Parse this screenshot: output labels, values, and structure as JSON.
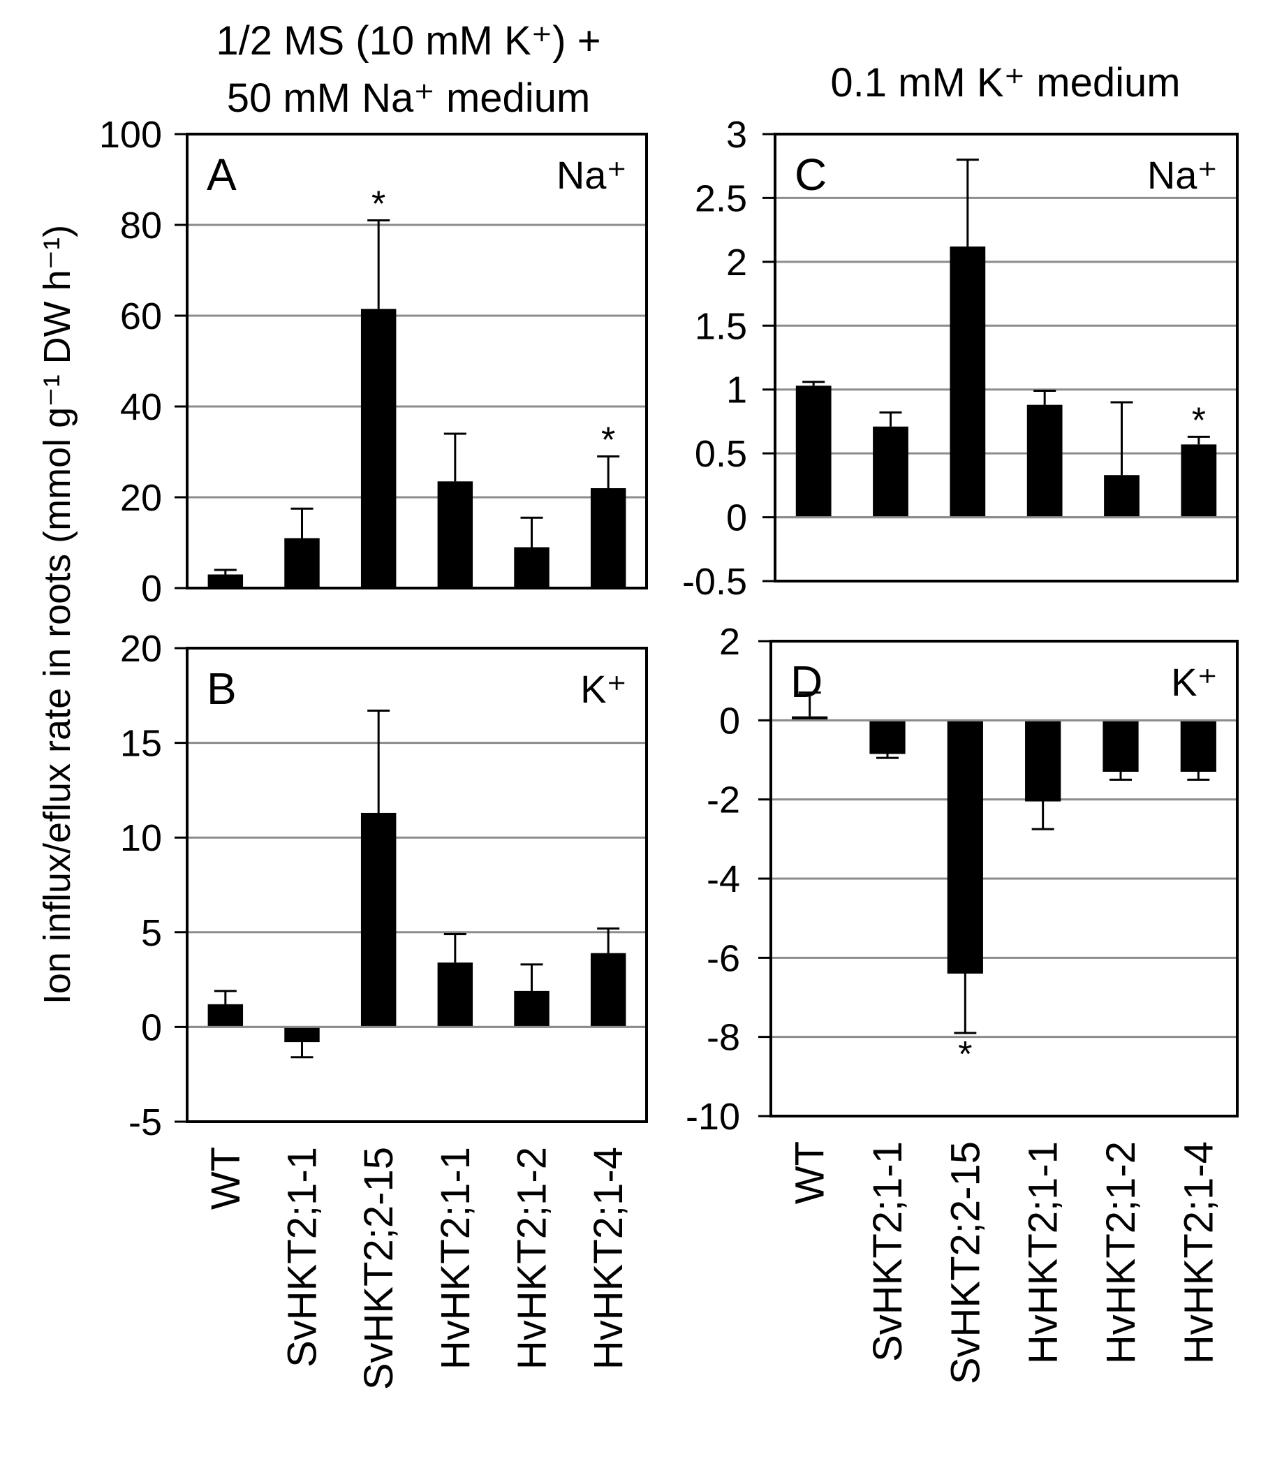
{
  "figure": {
    "column_titles": {
      "left_line1": "1/2 MS (10 mM K⁺) +",
      "left_line2": "50 mM Na⁺ medium",
      "right": "0.1 mM K⁺ medium"
    },
    "ylabel": "Ion influx/eflux rate in roots (mmol g⁻¹ DW h⁻¹)"
  },
  "chart_data": [
    {
      "id": "A",
      "type": "bar",
      "panel_label": "A",
      "ion_label": "Na⁺",
      "categories": [
        "WT",
        "SvHKT2;1-1",
        "SvHKT2;2-15",
        "HvHKT2;1-1",
        "HvHKT2;1-2",
        "HvHKT2;1-4"
      ],
      "values": [
        3,
        11,
        61.5,
        23.5,
        9,
        22
      ],
      "errors": [
        1,
        6.5,
        19.5,
        10.5,
        6.5,
        7
      ],
      "significant": [
        false,
        false,
        true,
        false,
        false,
        true
      ],
      "ylim": [
        0,
        100
      ],
      "yticks": [
        0,
        20,
        40,
        60,
        80,
        100
      ]
    },
    {
      "id": "B",
      "type": "bar",
      "panel_label": "B",
      "ion_label": "K⁺",
      "categories": [
        "WT",
        "SvHKT2;1-1",
        "SvHKT2;2-15",
        "HvHKT2;1-1",
        "HvHKT2;1-2",
        "HvHKT2;1-4"
      ],
      "values": [
        1.2,
        -0.8,
        11.3,
        3.4,
        1.9,
        3.9
      ],
      "errors": [
        0.7,
        0.8,
        5.4,
        1.5,
        1.4,
        1.3
      ],
      "significant": [
        false,
        false,
        false,
        false,
        false,
        false
      ],
      "ylim": [
        -5,
        20
      ],
      "yticks": [
        -5,
        0,
        5,
        10,
        15,
        20
      ]
    },
    {
      "id": "C",
      "type": "bar",
      "panel_label": "C",
      "ion_label": "Na⁺",
      "categories": [
        "WT",
        "SvHKT2;1-1",
        "SvHKT2;2-15",
        "HvHKT2;1-1",
        "HvHKT2;1-2",
        "HvHKT2;1-4"
      ],
      "values": [
        1.03,
        0.71,
        2.12,
        0.88,
        0.33,
        0.57
      ],
      "errors": [
        0.03,
        0.11,
        0.68,
        0.11,
        0.57,
        0.06
      ],
      "significant": [
        false,
        false,
        false,
        false,
        false,
        true
      ],
      "ylim": [
        -0.5,
        3
      ],
      "yticks": [
        -0.5,
        0,
        0.5,
        1,
        1.5,
        2,
        2.5,
        3
      ]
    },
    {
      "id": "D",
      "type": "bar",
      "panel_label": "D",
      "ion_label": "K⁺",
      "categories": [
        "WT",
        "SvHKT2;1-1",
        "SvHKT2;2-15",
        "HvHKT2;1-1",
        "HvHKT2;1-2",
        "HvHKT2;1-4"
      ],
      "values": [
        0.1,
        -0.85,
        -6.4,
        -2.05,
        -1.3,
        -1.3
      ],
      "errors": [
        0.6,
        0.1,
        1.5,
        0.7,
        0.2,
        0.2
      ],
      "significant": [
        false,
        false,
        true,
        false,
        false,
        false
      ],
      "ylim": [
        -10,
        2
      ],
      "yticks": [
        -10,
        -8,
        -6,
        -4,
        -2,
        0,
        2
      ]
    }
  ],
  "annotation_marker": "*"
}
